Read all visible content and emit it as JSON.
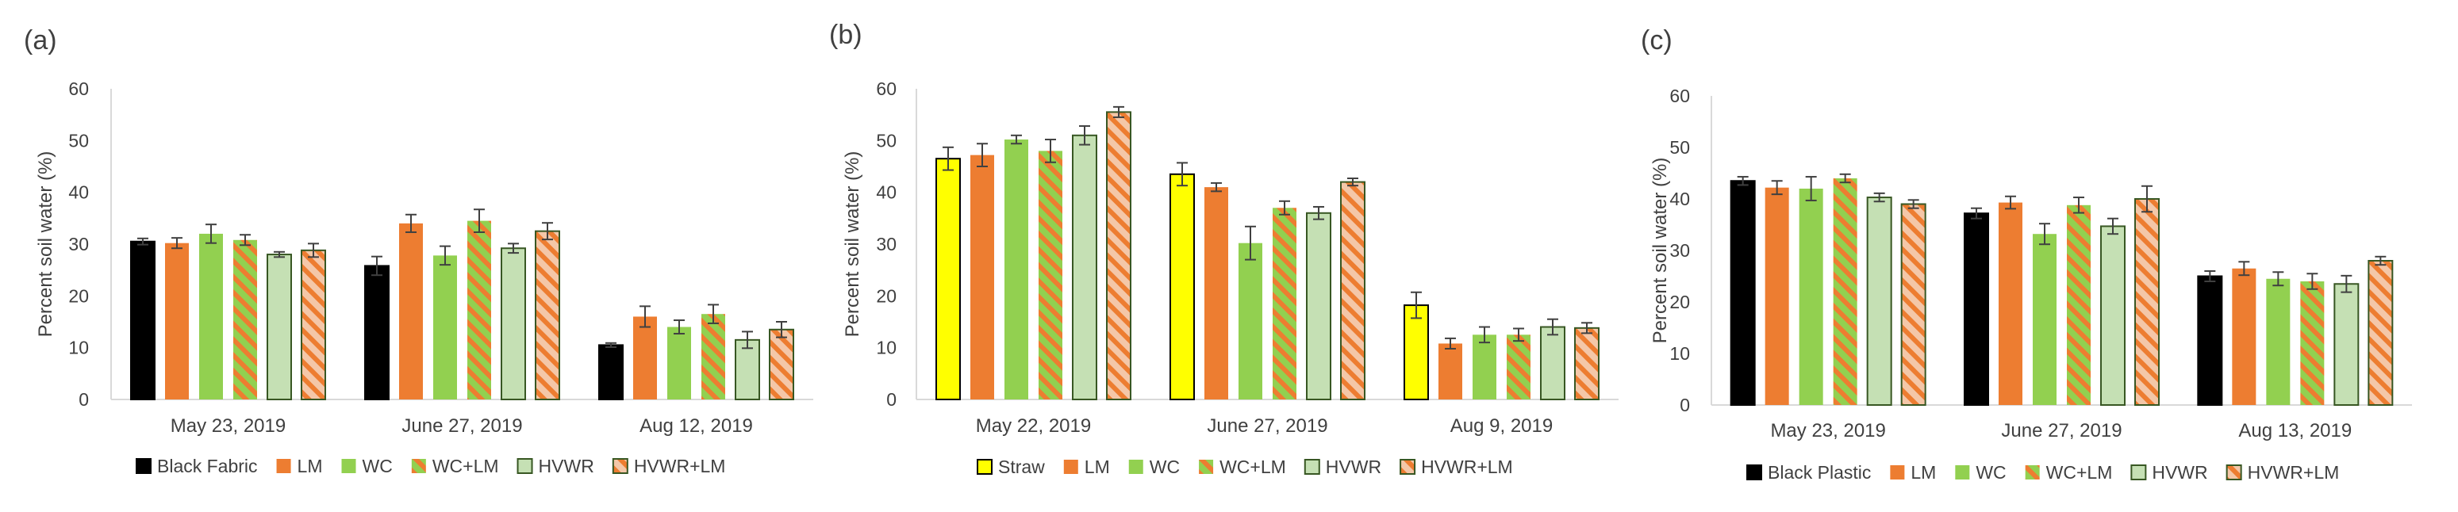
{
  "colors": {
    "black": "#000000",
    "yellow": "#ffff00",
    "orange": "#ed7d31",
    "green": "#92d050",
    "pale_green": "#c5e0b4",
    "dark_green": "#385723",
    "stripe_base": "#f4c7a8",
    "axis": "#d9d9d9",
    "text": "#404040"
  },
  "chart_data": [
    {
      "type": "bar",
      "panel_label": "(a)",
      "ylabel": "Percent soil water (%)",
      "ylim": [
        0,
        60
      ],
      "yticks": [
        "0",
        "10",
        "20",
        "30",
        "40",
        "50",
        "60"
      ],
      "categories": [
        "May 23, 2019",
        "June 27, 2019",
        "Aug 12, 2019"
      ],
      "legend_position": "bottom",
      "series": [
        {
          "name": "Black Fabric",
          "fill": "black",
          "values": [
            30.5,
            25.8,
            10.5
          ],
          "errors": [
            0.6,
            1.8,
            0.4
          ]
        },
        {
          "name": "LM",
          "fill": "orange",
          "values": [
            30.2,
            34.0,
            16.0
          ],
          "errors": [
            1.0,
            1.7,
            2.0
          ]
        },
        {
          "name": "WC",
          "fill": "green",
          "values": [
            32.0,
            27.8,
            14.0
          ],
          "errors": [
            1.8,
            1.8,
            1.3
          ]
        },
        {
          "name": "WC+LM",
          "fill": "stripe_green_orange",
          "values": [
            30.8,
            34.5,
            16.5
          ],
          "errors": [
            1.0,
            2.2,
            1.8
          ]
        },
        {
          "name": "HVWR",
          "fill": "pale",
          "values": [
            28.0,
            29.2,
            11.5
          ],
          "errors": [
            0.5,
            0.9,
            1.6
          ]
        },
        {
          "name": "HVWR+LM",
          "fill": "stripe_pale_orange",
          "values": [
            28.8,
            32.5,
            13.5
          ],
          "errors": [
            1.3,
            1.6,
            1.5
          ]
        }
      ]
    },
    {
      "type": "bar",
      "panel_label": "(b)",
      "ylabel": "Percent soil water (%)",
      "ylim": [
        0,
        60
      ],
      "yticks": [
        "0",
        "10",
        "20",
        "30",
        "40",
        "50",
        "60"
      ],
      "categories": [
        "May 22, 2019",
        "June 27, 2019",
        "Aug 9, 2019"
      ],
      "legend_position": "bottom",
      "series": [
        {
          "name": "Straw",
          "fill": "yellow",
          "values": [
            46.5,
            43.5,
            18.2
          ],
          "errors": [
            2.2,
            2.2,
            2.5
          ]
        },
        {
          "name": "LM",
          "fill": "orange",
          "values": [
            47.2,
            41.0,
            10.8
          ],
          "errors": [
            2.2,
            0.8,
            1.0
          ]
        },
        {
          "name": "WC",
          "fill": "green",
          "values": [
            50.2,
            30.2,
            12.5
          ],
          "errors": [
            0.8,
            3.2,
            1.5
          ]
        },
        {
          "name": "WC+LM",
          "fill": "stripe_green_orange",
          "values": [
            48.0,
            37.0,
            12.5
          ],
          "errors": [
            2.2,
            1.3,
            1.2
          ]
        },
        {
          "name": "HVWR",
          "fill": "pale",
          "values": [
            51.0,
            36.0,
            14.0
          ],
          "errors": [
            1.8,
            1.2,
            1.5
          ]
        },
        {
          "name": "HVWR+LM",
          "fill": "stripe_pale_orange",
          "values": [
            55.5,
            42.0,
            13.8
          ],
          "errors": [
            1.0,
            0.7,
            1.0
          ]
        }
      ]
    },
    {
      "type": "bar",
      "panel_label": "(c)",
      "ylabel": "Percent soil water (%)",
      "ylim": [
        0,
        60
      ],
      "yticks": [
        "0",
        "10",
        "20",
        "30",
        "40",
        "50",
        "60"
      ],
      "categories": [
        "May 23, 2019",
        "June 27, 2019",
        "Aug 13, 2019"
      ],
      "legend_position": "bottom",
      "series": [
        {
          "name": "Black Plastic",
          "fill": "black",
          "values": [
            43.5,
            37.2,
            25.0
          ],
          "errors": [
            0.8,
            1.0,
            1.0
          ]
        },
        {
          "name": "LM",
          "fill": "orange",
          "values": [
            42.2,
            39.3,
            26.5
          ],
          "errors": [
            1.3,
            1.2,
            1.3
          ]
        },
        {
          "name": "WC",
          "fill": "green",
          "values": [
            42.0,
            33.2,
            24.5
          ],
          "errors": [
            2.3,
            2.0,
            1.3
          ]
        },
        {
          "name": "WC+LM",
          "fill": "stripe_green_orange",
          "values": [
            44.0,
            38.8,
            24.0
          ],
          "errors": [
            0.8,
            1.5,
            1.5
          ]
        },
        {
          "name": "HVWR",
          "fill": "pale",
          "values": [
            40.3,
            34.7,
            23.5
          ],
          "errors": [
            0.8,
            1.5,
            1.6
          ]
        },
        {
          "name": "HVWR+LM",
          "fill": "stripe_pale_orange",
          "values": [
            39.0,
            40.0,
            28.0
          ],
          "errors": [
            0.8,
            2.5,
            0.8
          ]
        }
      ]
    }
  ]
}
